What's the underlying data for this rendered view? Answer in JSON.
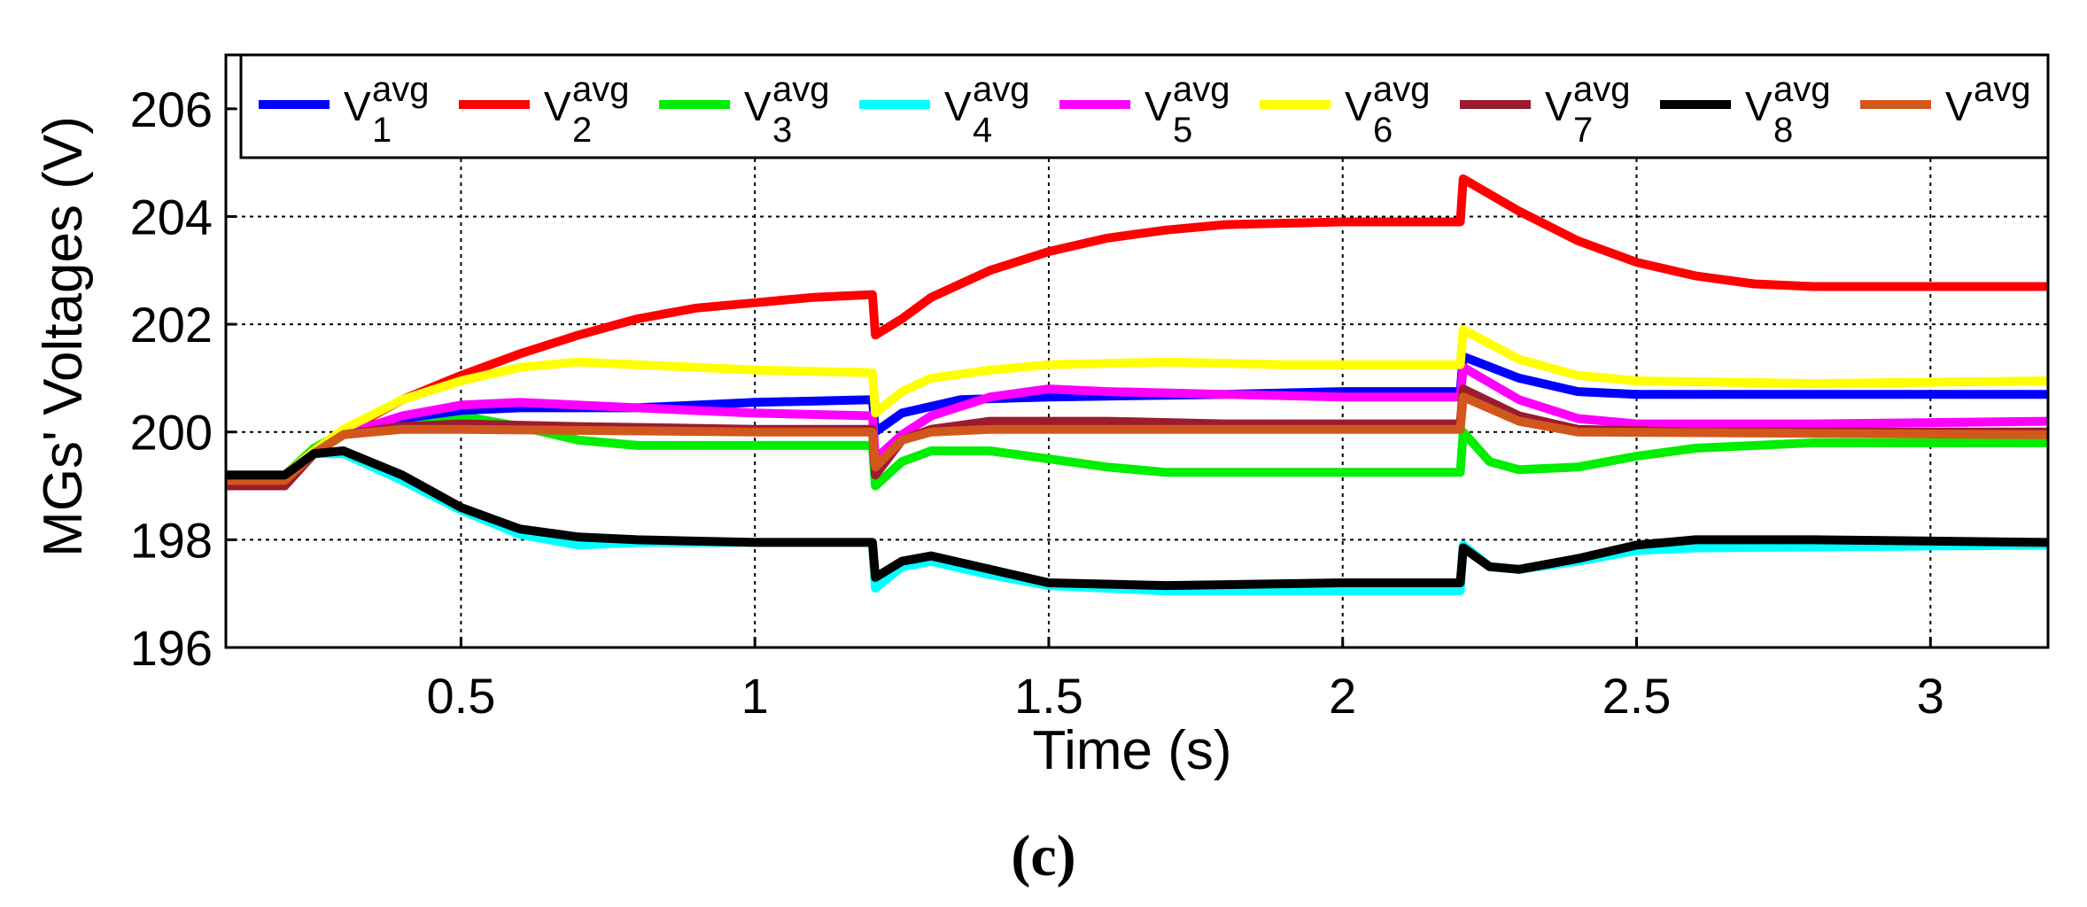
{
  "chart_data": {
    "type": "line",
    "title": "",
    "xlabel": "Time (s)",
    "ylabel": "MGs' Voltages (V)",
    "caption": "(c)",
    "xlim": [
      0.1,
      3.2
    ],
    "ylim": [
      196,
      207
    ],
    "xticks": [
      0.5,
      1,
      1.5,
      2,
      2.5,
      3
    ],
    "xtick_labels": [
      "0.5",
      "1",
      "1.5",
      "2",
      "2.5",
      "3"
    ],
    "yticks": [
      196,
      198,
      200,
      202,
      204,
      206
    ],
    "ytick_labels": [
      "196",
      "198",
      "200",
      "202",
      "204",
      "206"
    ],
    "grid": true,
    "legend_position": "top",
    "series": [
      {
        "name": "V1avg",
        "label_main": "V",
        "label_sup": "avg",
        "label_sub": "1",
        "color": "#0000ff",
        "points": [
          [
            0.1,
            199.2
          ],
          [
            0.2,
            199.2
          ],
          [
            0.25,
            199.65
          ],
          [
            0.3,
            199.95
          ],
          [
            0.4,
            200.25
          ],
          [
            0.5,
            200.4
          ],
          [
            0.6,
            200.45
          ],
          [
            0.8,
            200.45
          ],
          [
            1.0,
            200.55
          ],
          [
            1.2,
            200.6
          ],
          [
            1.205,
            200.0
          ],
          [
            1.25,
            200.35
          ],
          [
            1.35,
            200.6
          ],
          [
            1.5,
            200.65
          ],
          [
            1.8,
            200.7
          ],
          [
            2.0,
            200.75
          ],
          [
            2.2,
            200.75
          ],
          [
            2.205,
            201.4
          ],
          [
            2.3,
            201.0
          ],
          [
            2.4,
            200.75
          ],
          [
            2.5,
            200.7
          ],
          [
            2.8,
            200.7
          ],
          [
            3.2,
            200.7
          ]
        ]
      },
      {
        "name": "V2avg",
        "label_main": "V",
        "label_sup": "avg",
        "label_sub": "2",
        "color": "#ff0000",
        "points": [
          [
            0.1,
            199.0
          ],
          [
            0.2,
            199.0
          ],
          [
            0.25,
            199.6
          ],
          [
            0.3,
            200.0
          ],
          [
            0.4,
            200.6
          ],
          [
            0.5,
            201.05
          ],
          [
            0.6,
            201.45
          ],
          [
            0.7,
            201.8
          ],
          [
            0.8,
            202.1
          ],
          [
            0.9,
            202.3
          ],
          [
            1.0,
            202.4
          ],
          [
            1.1,
            202.5
          ],
          [
            1.2,
            202.55
          ],
          [
            1.205,
            201.8
          ],
          [
            1.25,
            202.1
          ],
          [
            1.3,
            202.5
          ],
          [
            1.4,
            203.0
          ],
          [
            1.5,
            203.35
          ],
          [
            1.6,
            203.6
          ],
          [
            1.7,
            203.75
          ],
          [
            1.8,
            203.85
          ],
          [
            2.0,
            203.9
          ],
          [
            2.2,
            203.9
          ],
          [
            2.205,
            204.7
          ],
          [
            2.3,
            204.1
          ],
          [
            2.4,
            203.55
          ],
          [
            2.5,
            203.15
          ],
          [
            2.6,
            202.9
          ],
          [
            2.7,
            202.75
          ],
          [
            2.8,
            202.7
          ],
          [
            3.2,
            202.7
          ]
        ]
      },
      {
        "name": "V3avg",
        "label_main": "V",
        "label_sup": "avg",
        "label_sub": "3",
        "color": "#00ee00",
        "points": [
          [
            0.1,
            199.2
          ],
          [
            0.2,
            199.2
          ],
          [
            0.25,
            199.7
          ],
          [
            0.3,
            200.0
          ],
          [
            0.4,
            200.25
          ],
          [
            0.5,
            200.3
          ],
          [
            0.6,
            200.1
          ],
          [
            0.7,
            199.85
          ],
          [
            0.8,
            199.75
          ],
          [
            1.0,
            199.75
          ],
          [
            1.2,
            199.75
          ],
          [
            1.205,
            199.0
          ],
          [
            1.25,
            199.45
          ],
          [
            1.3,
            199.65
          ],
          [
            1.4,
            199.65
          ],
          [
            1.5,
            199.5
          ],
          [
            1.6,
            199.35
          ],
          [
            1.7,
            199.25
          ],
          [
            1.8,
            199.25
          ],
          [
            2.0,
            199.25
          ],
          [
            2.2,
            199.25
          ],
          [
            2.205,
            200.0
          ],
          [
            2.25,
            199.45
          ],
          [
            2.3,
            199.3
          ],
          [
            2.4,
            199.35
          ],
          [
            2.5,
            199.55
          ],
          [
            2.6,
            199.7
          ],
          [
            2.8,
            199.8
          ],
          [
            3.2,
            199.8
          ]
        ]
      },
      {
        "name": "V4avg",
        "label_main": "V",
        "label_sup": "avg",
        "label_sub": "4",
        "color": "#00ffff",
        "points": [
          [
            0.1,
            199.2
          ],
          [
            0.2,
            199.2
          ],
          [
            0.25,
            199.6
          ],
          [
            0.3,
            199.6
          ],
          [
            0.4,
            199.1
          ],
          [
            0.5,
            198.55
          ],
          [
            0.6,
            198.1
          ],
          [
            0.7,
            197.9
          ],
          [
            0.8,
            197.95
          ],
          [
            1.0,
            197.95
          ],
          [
            1.2,
            197.95
          ],
          [
            1.205,
            197.1
          ],
          [
            1.25,
            197.5
          ],
          [
            1.3,
            197.6
          ],
          [
            1.4,
            197.35
          ],
          [
            1.5,
            197.15
          ],
          [
            1.7,
            197.05
          ],
          [
            2.0,
            197.05
          ],
          [
            2.2,
            197.05
          ],
          [
            2.205,
            197.9
          ],
          [
            2.25,
            197.5
          ],
          [
            2.3,
            197.45
          ],
          [
            2.4,
            197.6
          ],
          [
            2.5,
            197.8
          ],
          [
            2.6,
            197.85
          ],
          [
            3.2,
            197.9
          ]
        ]
      },
      {
        "name": "V5avg",
        "label_main": "V",
        "label_sup": "avg",
        "label_sub": "5",
        "color": "#ff00ff",
        "points": [
          [
            0.1,
            199.2
          ],
          [
            0.2,
            199.2
          ],
          [
            0.25,
            199.65
          ],
          [
            0.3,
            199.95
          ],
          [
            0.4,
            200.3
          ],
          [
            0.5,
            200.5
          ],
          [
            0.6,
            200.55
          ],
          [
            0.8,
            200.45
          ],
          [
            1.0,
            200.35
          ],
          [
            1.2,
            200.3
          ],
          [
            1.205,
            199.5
          ],
          [
            1.25,
            199.95
          ],
          [
            1.3,
            200.3
          ],
          [
            1.4,
            200.65
          ],
          [
            1.5,
            200.8
          ],
          [
            1.6,
            200.75
          ],
          [
            1.8,
            200.7
          ],
          [
            2.0,
            200.65
          ],
          [
            2.2,
            200.65
          ],
          [
            2.205,
            201.2
          ],
          [
            2.3,
            200.6
          ],
          [
            2.4,
            200.25
          ],
          [
            2.5,
            200.15
          ],
          [
            2.8,
            200.15
          ],
          [
            3.2,
            200.2
          ]
        ]
      },
      {
        "name": "V6avg",
        "label_main": "V",
        "label_sup": "avg",
        "label_sub": "6",
        "color": "#ffff00",
        "points": [
          [
            0.1,
            199.2
          ],
          [
            0.2,
            199.2
          ],
          [
            0.25,
            199.65
          ],
          [
            0.3,
            200.05
          ],
          [
            0.4,
            200.6
          ],
          [
            0.5,
            200.95
          ],
          [
            0.6,
            201.2
          ],
          [
            0.7,
            201.3
          ],
          [
            0.8,
            201.25
          ],
          [
            1.0,
            201.15
          ],
          [
            1.2,
            201.1
          ],
          [
            1.205,
            200.35
          ],
          [
            1.25,
            200.75
          ],
          [
            1.3,
            201.0
          ],
          [
            1.4,
            201.15
          ],
          [
            1.5,
            201.25
          ],
          [
            1.7,
            201.3
          ],
          [
            1.9,
            201.25
          ],
          [
            2.2,
            201.25
          ],
          [
            2.205,
            201.9
          ],
          [
            2.3,
            201.35
          ],
          [
            2.4,
            201.05
          ],
          [
            2.5,
            200.95
          ],
          [
            2.8,
            200.9
          ],
          [
            3.2,
            200.95
          ]
        ]
      },
      {
        "name": "V7avg",
        "label_main": "V",
        "label_sup": "avg",
        "label_sub": "7",
        "color": "#9b1b30",
        "points": [
          [
            0.1,
            199.0
          ],
          [
            0.2,
            199.0
          ],
          [
            0.25,
            199.6
          ],
          [
            0.3,
            199.95
          ],
          [
            0.4,
            200.1
          ],
          [
            0.5,
            200.15
          ],
          [
            0.7,
            200.1
          ],
          [
            1.0,
            200.05
          ],
          [
            1.2,
            200.05
          ],
          [
            1.205,
            199.2
          ],
          [
            1.25,
            199.85
          ],
          [
            1.3,
            200.05
          ],
          [
            1.4,
            200.2
          ],
          [
            1.6,
            200.2
          ],
          [
            1.8,
            200.15
          ],
          [
            2.0,
            200.15
          ],
          [
            2.2,
            200.15
          ],
          [
            2.205,
            200.8
          ],
          [
            2.3,
            200.3
          ],
          [
            2.4,
            200.05
          ],
          [
            2.6,
            200.0
          ],
          [
            3.2,
            200.0
          ]
        ]
      },
      {
        "name": "V8avg",
        "label_main": "V",
        "label_sup": "avg",
        "label_sub": "8",
        "color": "#000000",
        "points": [
          [
            0.1,
            199.2
          ],
          [
            0.2,
            199.2
          ],
          [
            0.25,
            199.6
          ],
          [
            0.3,
            199.65
          ],
          [
            0.4,
            199.2
          ],
          [
            0.5,
            198.6
          ],
          [
            0.6,
            198.2
          ],
          [
            0.7,
            198.05
          ],
          [
            0.8,
            198.0
          ],
          [
            1.0,
            197.95
          ],
          [
            1.2,
            197.95
          ],
          [
            1.205,
            197.3
          ],
          [
            1.25,
            197.6
          ],
          [
            1.3,
            197.7
          ],
          [
            1.4,
            197.45
          ],
          [
            1.5,
            197.2
          ],
          [
            1.7,
            197.15
          ],
          [
            2.0,
            197.2
          ],
          [
            2.2,
            197.2
          ],
          [
            2.205,
            197.85
          ],
          [
            2.25,
            197.5
          ],
          [
            2.3,
            197.45
          ],
          [
            2.4,
            197.65
          ],
          [
            2.5,
            197.9
          ],
          [
            2.6,
            198.0
          ],
          [
            2.8,
            198.0
          ],
          [
            3.2,
            197.95
          ]
        ]
      },
      {
        "name": "Vavg",
        "label_main": "V",
        "label_sup": "avg",
        "label_sub": "",
        "color": "#d2571c",
        "points": [
          [
            0.1,
            199.1
          ],
          [
            0.2,
            199.1
          ],
          [
            0.25,
            199.6
          ],
          [
            0.3,
            199.95
          ],
          [
            0.4,
            200.05
          ],
          [
            0.5,
            200.05
          ],
          [
            1.0,
            200.0
          ],
          [
            1.2,
            200.0
          ],
          [
            1.205,
            199.35
          ],
          [
            1.25,
            199.85
          ],
          [
            1.3,
            200.0
          ],
          [
            1.4,
            200.05
          ],
          [
            2.2,
            200.05
          ],
          [
            2.205,
            200.65
          ],
          [
            2.3,
            200.2
          ],
          [
            2.4,
            200.0
          ],
          [
            3.2,
            199.95
          ]
        ]
      }
    ]
  }
}
